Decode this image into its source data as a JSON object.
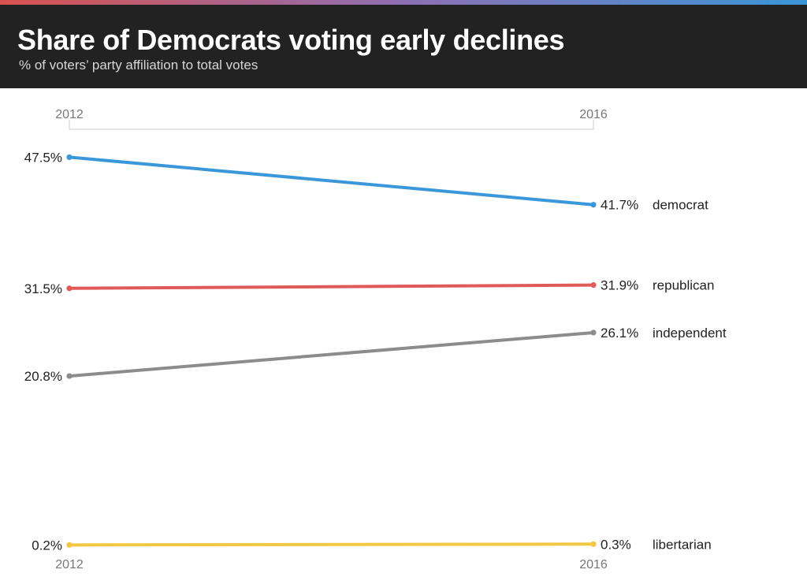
{
  "header": {
    "title": "Share of Democrats voting early declines",
    "subtitle": "% of voters’ party affiliation to total votes"
  },
  "colors": {
    "header_bg": "#222222",
    "stripe": [
      "#d9534f",
      "#8e6fb3",
      "#3a97d9"
    ]
  },
  "chart_data": {
    "type": "line",
    "title": "Share of Democrats voting early declines",
    "subtitle": "% of voters’ party affiliation to total votes",
    "xlabel": "",
    "ylabel": "",
    "x": [
      "2012",
      "2016"
    ],
    "ylim": [
      0,
      50
    ],
    "grid": false,
    "legend": "direct labels at right end of each line",
    "series": [
      {
        "name": "democrat",
        "values": [
          47.5,
          41.7
        ],
        "labels": [
          "47.5%",
          "41.7%"
        ],
        "color": "#3a97d9"
      },
      {
        "name": "republican",
        "values": [
          31.5,
          31.9
        ],
        "labels": [
          "31.5%",
          "31.9%"
        ],
        "color": "#e05a5a"
      },
      {
        "name": "independent",
        "values": [
          20.8,
          26.1
        ],
        "labels": [
          "20.8%",
          "26.1%"
        ],
        "color": "#8c8c8c"
      },
      {
        "name": "libertarian",
        "values": [
          0.2,
          0.3
        ],
        "labels": [
          "0.2%",
          "0.3%"
        ],
        "color": "#f2c744"
      }
    ]
  }
}
